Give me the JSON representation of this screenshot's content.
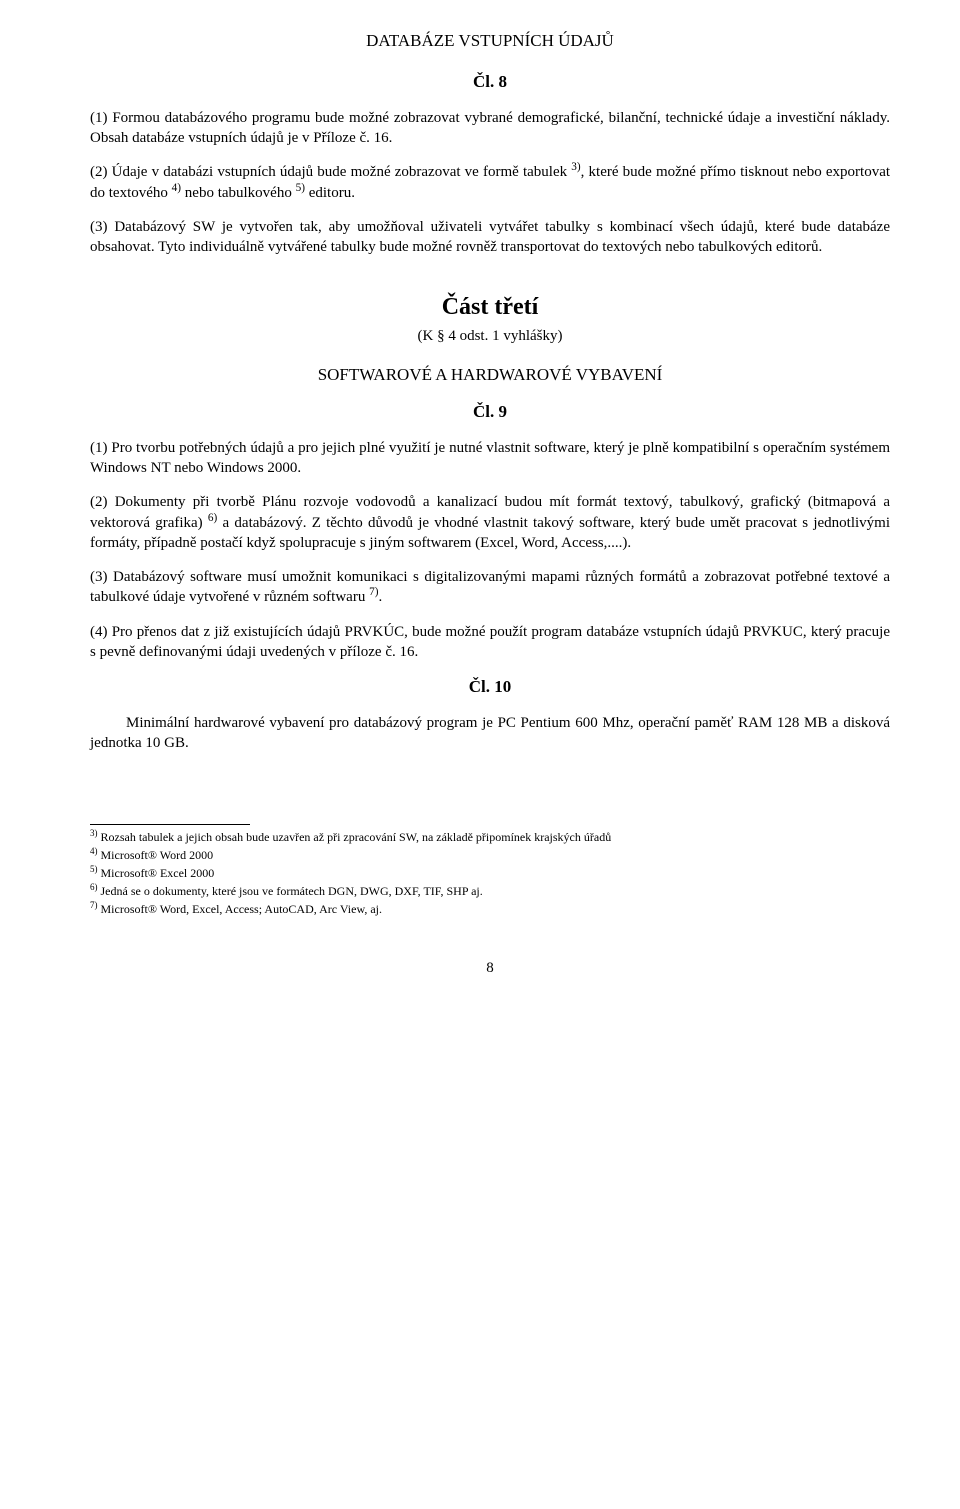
{
  "header_section": "DATABÁZE VSTUPNÍCH ÚDAJŮ",
  "article8": {
    "heading": "Čl. 8",
    "p1": "(1) Formou databázového programu bude možné zobrazovat vybrané demografické, bilanční, technické údaje a investiční náklady. Obsah databáze vstupních údajů je v Příloze č. 16.",
    "p2_a": "(2) Údaje v databázi vstupních údajů bude možné zobrazovat ve formě tabulek ",
    "p2_sup1": "3)",
    "p2_b": ", které bude možné přímo tisknout nebo exportovat do textového ",
    "p2_sup2": "4)",
    "p2_c": " nebo tabulkového ",
    "p2_sup3": "5)",
    "p2_d": " editoru.",
    "p3": "(3) Databázový SW je vytvořen tak, aby umožňoval uživateli vytvářet tabulky s kombinací všech údajů, které bude databáze obsahovat. Tyto individuálně vytvářené tabulky bude možné rovněž transportovat do textových nebo tabulkových editorů."
  },
  "part3": {
    "title": "Část třetí",
    "subtitle": "(K § 4 odst. 1 vyhlášky)",
    "sw_hw": "SOFTWAROVÉ A HARDWAROVÉ VYBAVENÍ"
  },
  "article9": {
    "heading": "Čl. 9",
    "p1": "(1) Pro tvorbu potřebných údajů a pro jejich plné využití je nutné vlastnit software, který je plně kompatibilní s operačním systémem Windows NT nebo Windows 2000.",
    "p2_a": "(2) Dokumenty při tvorbě Plánu rozvoje vodovodů a kanalizací budou mít formát textový, tabulkový, grafický (bitmapová a vektorová grafika) ",
    "p2_sup": "6)",
    "p2_b": " a databázový. Z těchto důvodů je vhodné vlastnit takový software, který bude umět pracovat s jednotlivými formáty, případně postačí když spolupracuje s jiným softwarem (Excel, Word, Access,....).",
    "p3_a": "(3) Databázový software musí umožnit komunikaci s digitalizovanými mapami různých formátů a zobrazovat potřebné textové a tabulkové údaje vytvořené v různém softwaru ",
    "p3_sup": "7)",
    "p3_b": ".",
    "p4": "(4) Pro přenos dat z již existujících údajů PRVKÚC, bude možné použít program databáze vstupních údajů PRVKUC, který pracuje s pevně definovanými údaji uvedených v příloze č. 16."
  },
  "article10": {
    "heading": "Čl. 10",
    "p1": "Minimální hardwarové vybavení pro databázový program je PC Pentium 600 Mhz, operační paměť RAM 128 MB a disková jednotka 10 GB."
  },
  "footnotes": {
    "f3_sup": "3)",
    "f3": " Rozsah tabulek a jejich obsah bude uzavřen až při zpracování SW, na základě připomínek krajských úřadů",
    "f4_sup": "4)",
    "f4": " Microsoft® Word 2000",
    "f5_sup": "5)",
    "f5": " Microsoft® Excel 2000",
    "f6_sup": "6)",
    "f6": " Jedná se o dokumenty, které jsou ve formátech DGN, DWG, DXF, TIF, SHP aj.",
    "f7_sup": "7)",
    "f7": " Microsoft® Word, Excel, Access; AutoCAD, Arc View, aj."
  },
  "page_number": "8"
}
